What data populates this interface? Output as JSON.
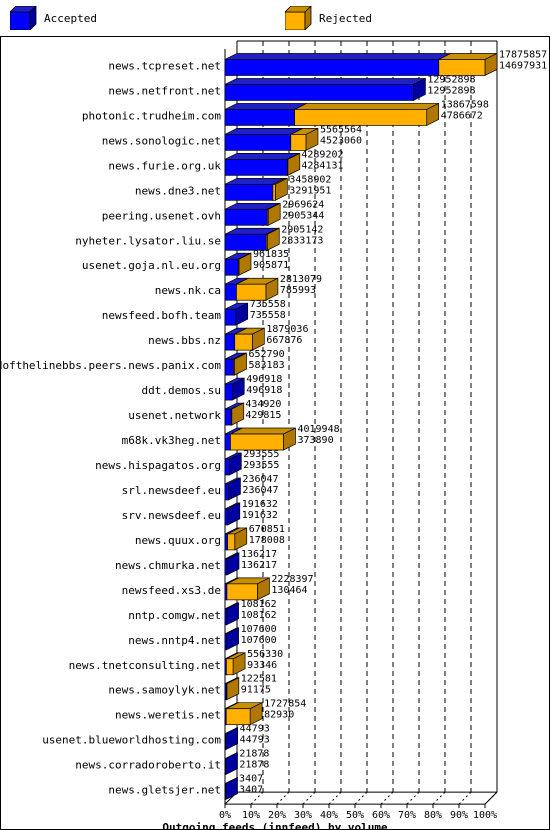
{
  "legend": {
    "accepted_label": "Accepted",
    "rejected_label": "Rejected"
  },
  "colors": {
    "accepted_front": "#0000ff",
    "accepted_side": "#0000a0",
    "accepted_top": "#2020c8",
    "rejected_front": "#ffb000",
    "rejected_side": "#b07800",
    "rejected_top": "#c89000"
  },
  "chart_data": {
    "type": "bar",
    "orientation": "horizontal",
    "stacked": true,
    "title": "Outgoing feeds (innfeed) by volume",
    "xlim": [
      0,
      100
    ],
    "x_ticks": [
      "0%",
      "10%",
      "20%",
      "30%",
      "40%",
      "50%",
      "60%",
      "70%",
      "80%",
      "90%",
      "100%"
    ],
    "max_total": 17875857,
    "categories": [
      "news.tcpreset.net",
      "news.netfront.net",
      "photonic.trudheim.com",
      "news.sonologic.net",
      "news.furie.org.uk",
      "news.dne3.net",
      "peering.usenet.ovh",
      "nyheter.lysator.liu.se",
      "usenet.goja.nl.eu.org",
      "news.nk.ca",
      "newsfeed.bofh.team",
      "news.bbs.nz",
      "endofthelinebbs.peers.news.panix.com",
      "ddt.demos.su",
      "usenet.network",
      "m68k.vk3heg.net",
      "news.hispagatos.org",
      "srl.newsdeef.eu",
      "srv.newsdeef.eu",
      "news.quux.org",
      "news.chmurka.net",
      "newsfeed.xs3.de",
      "nntp.comgw.net",
      "news.nntp4.net",
      "news.tnetconsulting.net",
      "news.samoylyk.net",
      "news.weretis.net",
      "usenet.blueworldhosting.com",
      "news.corradoroberto.it",
      "news.gletsjer.net"
    ],
    "offered": [
      17875857,
      12952898,
      13867598,
      5565564,
      4289202,
      3458902,
      2969624,
      2905142,
      961835,
      2813079,
      735558,
      1879036,
      652790,
      496918,
      434920,
      4019948,
      293555,
      236047,
      191632,
      670851,
      136217,
      2228397,
      108162,
      107600,
      556330,
      122581,
      1727854,
      44793,
      21878,
      3407
    ],
    "accepted": [
      14697931,
      12952898,
      4786672,
      4523060,
      4284131,
      3291951,
      2905344,
      2833173,
      905871,
      785993,
      735558,
      667876,
      583183,
      496918,
      429815,
      373890,
      293555,
      236047,
      191632,
      178008,
      136217,
      130464,
      108162,
      107600,
      93346,
      91175,
      82930,
      44793,
      21878,
      3407
    ],
    "series": [
      {
        "name": "Accepted"
      },
      {
        "name": "Rejected"
      }
    ],
    "legend_position": "top",
    "grid": true,
    "xlabel": "Outgoing feeds (innfeed) by volume"
  }
}
